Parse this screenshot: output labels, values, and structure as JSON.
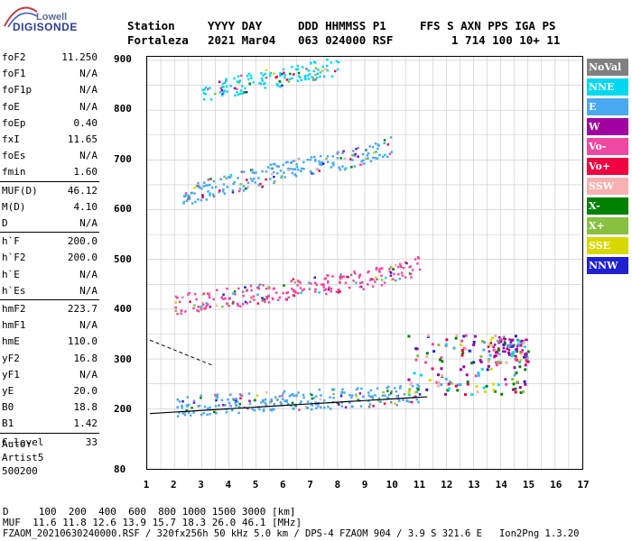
{
  "logo": {
    "top": "Lowell",
    "main": "DIGISONDE"
  },
  "header": {
    "labels": [
      "Station",
      "YYYY DAY",
      "DDD HHMMSS P1",
      "FFS S AXN PPS IGA PS"
    ],
    "values": [
      "Fortaleza",
      "2021 Mar04",
      "063 024000 RSF",
      "1 714 100 10+ 11"
    ]
  },
  "params": [
    {
      "name": "foF2",
      "value": "11.250"
    },
    {
      "name": "foF1",
      "value": "N/A"
    },
    {
      "name": "foF1p",
      "value": "N/A"
    },
    {
      "name": "foE",
      "value": "N/A"
    },
    {
      "name": "foEp",
      "value": "0.40"
    },
    {
      "name": "fxI",
      "value": "11.65"
    },
    {
      "name": "foEs",
      "value": "N/A"
    },
    {
      "name": "fmin",
      "value": "1.60"
    },
    {
      "name": "MUF(D)",
      "value": "46.12"
    },
    {
      "name": "M(D)",
      "value": "4.10"
    },
    {
      "name": "D",
      "value": "N/A"
    },
    {
      "name": "h`F",
      "value": "200.0"
    },
    {
      "name": "h`F2",
      "value": "200.0"
    },
    {
      "name": "h`E",
      "value": "N/A"
    },
    {
      "name": "h`Es",
      "value": "N/A"
    },
    {
      "name": "hmF2",
      "value": "223.7"
    },
    {
      "name": "hmF1",
      "value": "N/A"
    },
    {
      "name": "hmE",
      "value": "110.0"
    },
    {
      "name": "yF2",
      "value": "16.8"
    },
    {
      "name": "yF1",
      "value": "N/A"
    },
    {
      "name": "yE",
      "value": "20.0"
    },
    {
      "name": "B0",
      "value": "18.8"
    },
    {
      "name": "B1",
      "value": "1.42"
    },
    {
      "name": "C-level",
      "value": "33"
    }
  ],
  "auto": {
    "line1": "Auto:",
    "line2": "Artist5",
    "line3": "500200"
  },
  "legend": [
    {
      "label": "NoVal",
      "color": "#808080"
    },
    {
      "label": "NNE",
      "color": "#00d8f0"
    },
    {
      "label": "E",
      "color": "#4aa8f0"
    },
    {
      "label": "W",
      "color": "#a000a0"
    },
    {
      "label": "Vo-",
      "color": "#f048a0"
    },
    {
      "label": "Vo+",
      "color": "#f00040"
    },
    {
      "label": "SSW",
      "color": "#f8b0b0"
    },
    {
      "label": "X-",
      "color": "#008000"
    },
    {
      "label": "X+",
      "color": "#88c040"
    },
    {
      "label": "SSE",
      "color": "#d8d800"
    },
    {
      "label": "NNW",
      "color": "#2020d0"
    }
  ],
  "footer": {
    "d_row": "D     100  200  400  600  800 1000 1500 3000 [km]",
    "muf_row": "MUF  11.6 11.8 12.6 13.9 15.7 18.3 26.0 46.1 [MHz]",
    "file_row": "FZAOM_20210630240000.RSF / 320fx256h 50 kHz 5.0 km / DPS-4 FZAOM 904 / 3.9 S 321.6 E   Ion2Png 1.3.20"
  },
  "chart_data": {
    "type": "scatter",
    "xlabel": "",
    "ylabel": "",
    "x_ticks": [
      "1",
      "2",
      "3",
      "4",
      "5",
      "6",
      "7",
      "8",
      "9",
      "10",
      "11",
      "12",
      "13",
      "14",
      "15",
      "16",
      "17"
    ],
    "y_ticks": [
      "900",
      "800",
      "700",
      "600",
      "500",
      "400",
      "300",
      "200",
      "80"
    ],
    "xlim": [
      1,
      17
    ],
    "ylim": [
      80,
      900
    ],
    "grid": true,
    "legend_position": "right",
    "traces": [
      {
        "name": "E",
        "x": [
          2.0,
          3.0,
          4.0,
          5.0,
          6.0,
          7.0,
          8.0,
          9.0,
          10.0,
          11.0
        ],
        "y": [
          205,
          210,
          212,
          215,
          218,
          220,
          222,
          225,
          228,
          232
        ]
      },
      {
        "name": "Vo-",
        "x": [
          2.0,
          3.0,
          4.0,
          5.0,
          6.0,
          7.0,
          8.0,
          9.0,
          10.0,
          11.0
        ],
        "y": [
          412,
          418,
          425,
          432,
          440,
          448,
          455,
          462,
          470,
          490
        ]
      },
      {
        "name": "E",
        "x": [
          2.3,
          3.0,
          4.0,
          5.0,
          6.0,
          7.0,
          8.0,
          9.0,
          10.0
        ],
        "y": [
          630,
          640,
          655,
          665,
          680,
          690,
          700,
          710,
          730
        ]
      },
      {
        "name": "NNE",
        "x": [
          3.0,
          4.0,
          5.0,
          6.0,
          7.0,
          8.0
        ],
        "y": [
          840,
          848,
          860,
          870,
          880,
          890
        ]
      },
      {
        "name": "W",
        "x": [
          13.5,
          14.0,
          14.5,
          15.0
        ],
        "y": [
          320,
          330,
          325,
          320
        ]
      }
    ]
  }
}
